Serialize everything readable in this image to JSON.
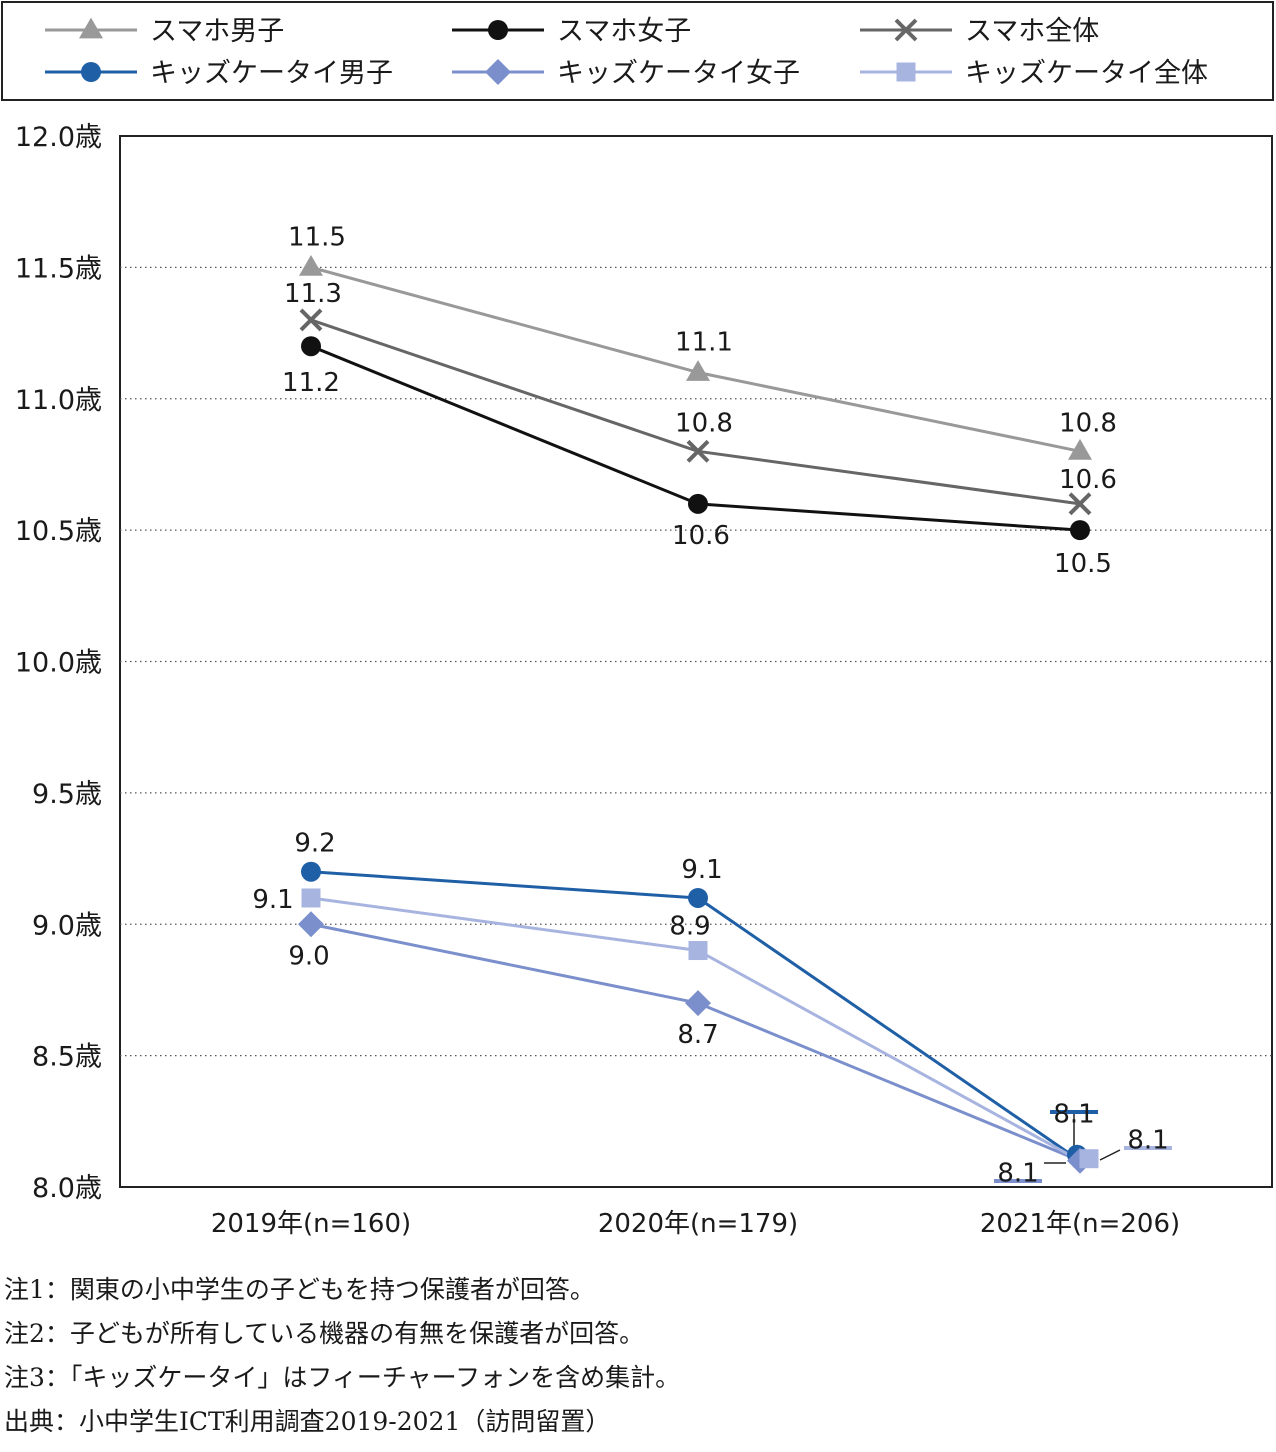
{
  "chart_data": {
    "type": "line",
    "title": "",
    "xlabel": "",
    "ylabel": "",
    "categories": [
      "2019年(n=160)",
      "2020年(n=179)",
      "2021年(n=206)"
    ],
    "ylim": [
      8.0,
      12.0
    ],
    "y_ticks": [
      8.0,
      8.5,
      9.0,
      9.5,
      10.0,
      10.5,
      11.0,
      11.5,
      12.0
    ],
    "y_tick_labels": [
      "8.0歳",
      "8.5歳",
      "9.0歳",
      "9.5歳",
      "10.0歳",
      "10.5歳",
      "11.0歳",
      "11.5歳",
      "12.0歳"
    ],
    "grid": "horizontal dotted",
    "legend_position": "top",
    "series": [
      {
        "name": "スマホ男子",
        "values": [
          11.5,
          11.1,
          10.8
        ],
        "labels": [
          "11.5",
          "11.1",
          "10.8"
        ],
        "color": "#999999",
        "marker": "triangle"
      },
      {
        "name": "スマホ女子",
        "values": [
          11.2,
          10.6,
          10.5
        ],
        "labels": [
          "11.2",
          "10.6",
          "10.5"
        ],
        "color": "#111111",
        "marker": "circle"
      },
      {
        "name": "スマホ全体",
        "values": [
          11.3,
          10.8,
          10.6
        ],
        "labels": [
          "11.3",
          "10.8",
          "10.6"
        ],
        "color": "#666666",
        "marker": "x"
      },
      {
        "name": "キッズケータイ男子",
        "values": [
          9.2,
          9.1,
          8.1
        ],
        "labels": [
          "9.2",
          "9.1",
          "8.1"
        ],
        "color": "#1f5fa6",
        "marker": "circle"
      },
      {
        "name": "キッズケータイ女子",
        "values": [
          9.0,
          8.7,
          8.1
        ],
        "labels": [
          "9.0",
          "8.7",
          "8.1"
        ],
        "color": "#7b8fcc",
        "marker": "diamond"
      },
      {
        "name": "キッズケータイ全体",
        "values": [
          9.1,
          8.9,
          8.1
        ],
        "labels": [
          "9.1",
          "8.9",
          "8.1"
        ],
        "color": "#a8b4e0",
        "marker": "square"
      }
    ]
  },
  "notes": [
    "注1：関東の小中学生の子どもを持つ保護者が回答。",
    "注2：子どもが所有している機器の有無を保護者が回答。",
    "注3：「キッズケータイ」はフィーチャーフォンを含め集計。",
    "出典：小中学生ICT利用調査2019-2021（訪問留置）"
  ]
}
